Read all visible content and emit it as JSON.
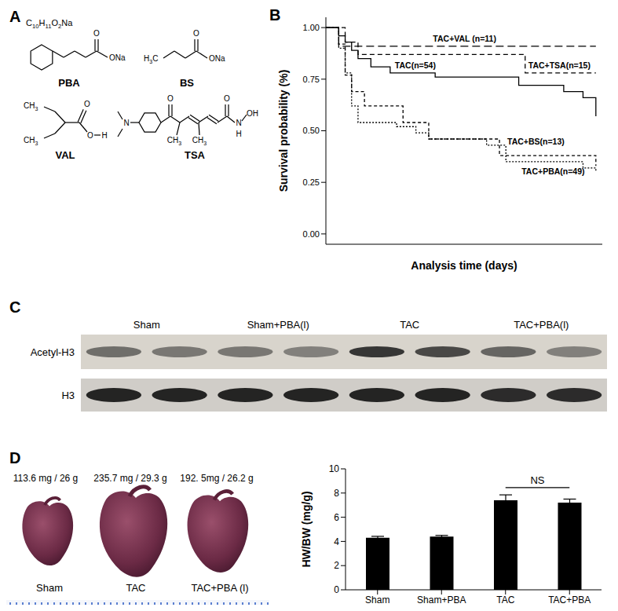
{
  "panels": [
    "A",
    "B",
    "C",
    "D"
  ],
  "structures": [
    {
      "name": "PBA",
      "formula": "C10H11O2Na",
      "atoms": [
        "O",
        "ONa"
      ]
    },
    {
      "name": "BS",
      "atoms": [
        "H3C",
        "O",
        "ONa"
      ]
    },
    {
      "name": "VAL",
      "atoms": [
        "CH3",
        "CH3",
        "O",
        "O",
        "H"
      ]
    },
    {
      "name": "TSA",
      "atoms": [
        "N",
        "O",
        "CH3",
        "CH3",
        "O",
        "N",
        "H",
        "OH"
      ]
    }
  ],
  "chart_data": [
    {
      "type": "step",
      "x_label": "Analysis time (days)",
      "y_label": "Survival probability (%)",
      "xlim": [
        0,
        43
      ],
      "ylim": [
        -0.05,
        1.05
      ],
      "yticks": [
        {
          "value": 0,
          "label": "0.00"
        },
        {
          "value": 0.25,
          "label": "0.25"
        },
        {
          "value": 0.5,
          "label": "0.50"
        },
        {
          "value": 0.75,
          "label": "0.75"
        },
        {
          "value": 1,
          "label": "1.00"
        }
      ],
      "tick_labels": "y",
      "series": [
        {
          "name": "TAC+VAL (n=11)",
          "color": "#000000",
          "line_style": "long_dash",
          "x": [
            0,
            2,
            42
          ],
          "values": [
            1,
            0.91,
            0.91
          ]
        },
        {
          "name": "TAC+TSA(n=15)",
          "color": "#000000",
          "line_style": "dashed",
          "x": [
            0,
            3,
            5,
            31,
            42
          ],
          "values": [
            1,
            0.93,
            0.87,
            0.78,
            0.78
          ]
        },
        {
          "name": "TAC(n=54)",
          "color": "#000000",
          "line_style": "solid",
          "x": [
            0,
            2,
            3,
            4,
            5,
            7,
            10,
            17,
            30,
            37,
            40,
            42
          ],
          "values": [
            1,
            0.96,
            0.93,
            0.89,
            0.85,
            0.81,
            0.78,
            0.76,
            0.72,
            0.69,
            0.66,
            0.57
          ]
        },
        {
          "name": "TAC+BS(n=13)",
          "color": "#000000",
          "line_style": "short_dash",
          "x": [
            0,
            2,
            3,
            4,
            6,
            12,
            16,
            27,
            42
          ],
          "values": [
            1,
            0.92,
            0.77,
            0.69,
            0.62,
            0.54,
            0.46,
            0.38,
            0.33
          ]
        },
        {
          "name": "TAC+PBA(n=49)",
          "color": "#000000",
          "line_style": "dotted",
          "x": [
            0,
            2,
            3,
            4,
            5,
            11,
            14,
            16,
            25,
            28,
            40,
            42
          ],
          "values": [
            1,
            0.9,
            0.78,
            0.62,
            0.54,
            0.52,
            0.49,
            0.46,
            0.43,
            0.35,
            0.32,
            0.3
          ]
        }
      ]
    },
    {
      "type": "bar",
      "y_label": "HW/BW (mg/g)",
      "categories": [
        "Sham",
        "Sham+PBA",
        "TAC",
        "TAC+PBA"
      ],
      "values": [
        4.3,
        4.4,
        7.4,
        7.2
      ],
      "errors": [
        0.12,
        0.1,
        0.45,
        0.3
      ],
      "color": "#000000",
      "ylim": [
        0,
        10
      ],
      "yticks": [
        0,
        2,
        4,
        6,
        8,
        10
      ],
      "annotations": [
        {
          "text": "NS",
          "between": [
            "TAC",
            "TAC+PBA"
          ]
        }
      ]
    }
  ],
  "blot": {
    "lanes": [
      "Sham",
      "Sham+PBA(l)",
      "TAC",
      "TAC+PBA(l)"
    ],
    "rows": [
      {
        "label": "Acetyl-H3",
        "intensity": [
          0.55,
          0.5,
          0.5,
          0.45,
          0.85,
          0.75,
          0.6,
          0.45
        ]
      },
      {
        "label": "H3",
        "intensity": [
          0.95,
          0.95,
          0.95,
          0.95,
          0.95,
          0.95,
          0.9,
          0.9
        ]
      }
    ]
  },
  "hearts": [
    {
      "label": "Sham",
      "weights": "113.6 mg / 26 g"
    },
    {
      "label": "TAC",
      "weights": "235.7 mg / 29.3 g"
    },
    {
      "label": "TAC+PBA (l)",
      "weights": "192. 5mg / 26.2 g"
    }
  ]
}
